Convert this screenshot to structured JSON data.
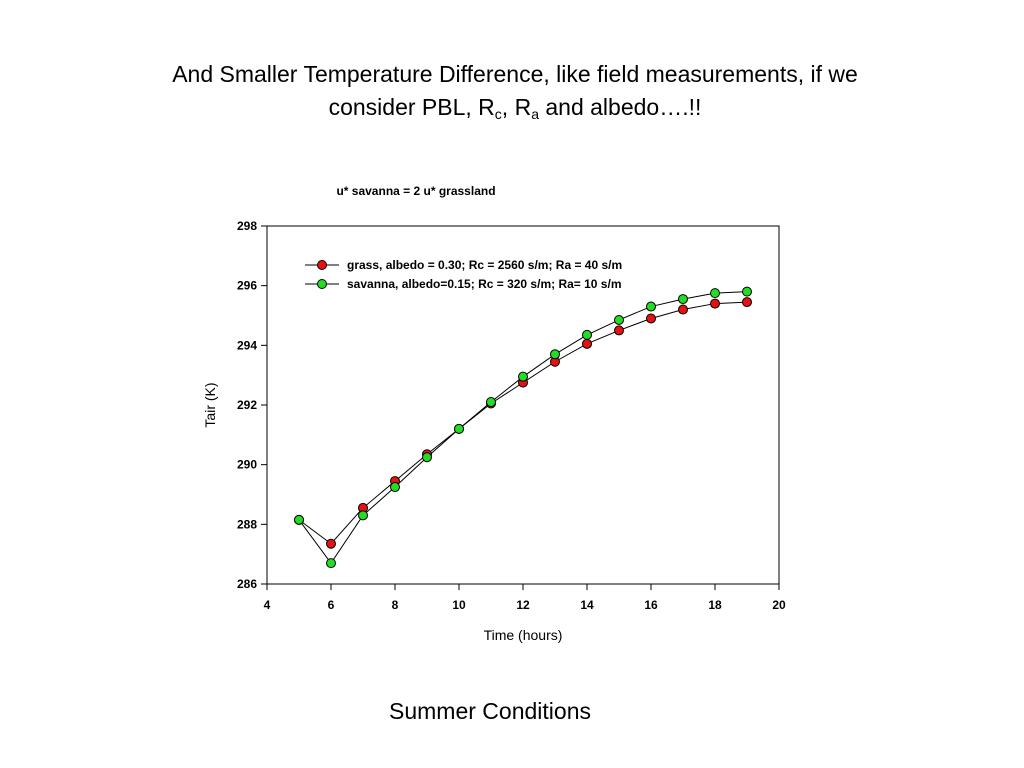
{
  "slide": {
    "title_line1": "And Smaller Temperature Difference, like field measurements, if we",
    "title_line2_pre": "consider PBL, R",
    "title_sub_c": "c",
    "title_mid": ", R",
    "title_sub_a": "a",
    "title_post": " and albedo….!!",
    "footer": "Summer Conditions"
  },
  "chart_data": {
    "type": "line",
    "title": "u* savanna = 2 u* grassland",
    "xlabel": "Time (hours)",
    "ylabel": "Tair (K)",
    "xlim": [
      4,
      20
    ],
    "ylim": [
      286,
      298
    ],
    "xticks": [
      4,
      6,
      8,
      10,
      12,
      14,
      16,
      18,
      20
    ],
    "yticks": [
      286,
      288,
      290,
      292,
      294,
      296,
      298
    ],
    "grid": false,
    "legend_position": "top-left",
    "x": [
      5,
      6,
      7,
      8,
      9,
      10,
      11,
      12,
      13,
      14,
      15,
      16,
      17,
      18,
      19
    ],
    "series": [
      {
        "name": "grass, albedo = 0.30; Rc = 2560 s/m; Ra = 40 s/m",
        "color": "#e81010",
        "values": [
          288.15,
          287.35,
          288.55,
          289.45,
          290.35,
          291.2,
          292.05,
          292.75,
          293.45,
          294.05,
          294.5,
          294.9,
          295.2,
          295.4,
          295.45
        ]
      },
      {
        "name": "savanna, albedo=0.15; Rc = 320 s/m; Ra= 10 s/m",
        "color": "#22dd22",
        "values": [
          288.15,
          286.7,
          288.3,
          289.25,
          290.25,
          291.2,
          292.1,
          292.95,
          293.7,
          294.35,
          294.85,
          295.3,
          295.55,
          295.75,
          295.8
        ]
      }
    ]
  }
}
